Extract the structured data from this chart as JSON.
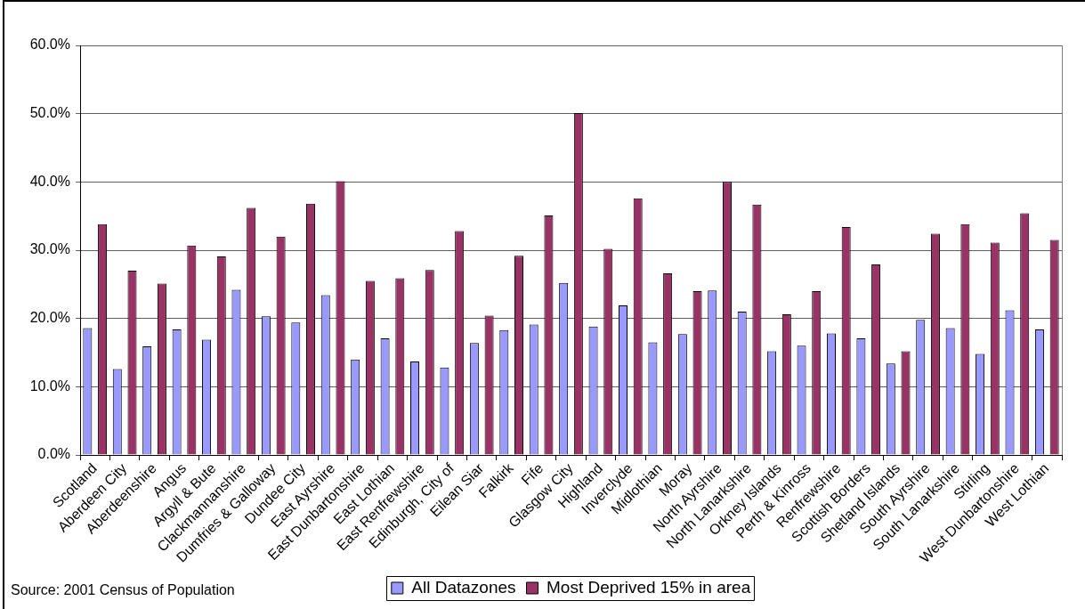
{
  "chart_data": {
    "type": "bar",
    "categories": [
      "Scotland",
      "Aberdeen City",
      "Aberdeenshire",
      "Angus",
      "Argyll & Bute",
      "Clackmannanshire",
      "Dumfries & Galloway",
      "Dundee City",
      "East Ayrshire",
      "East Dunbartonshire",
      "East Lothian",
      "East Renfrewshire",
      "Edinburgh, City of",
      "Eilean Siar",
      "Falkirk",
      "Fife",
      "Glasgow City",
      "Highland",
      "Inverclyde",
      "Midlothian",
      "Moray",
      "North Ayrshire",
      "North Lanarkshire",
      "Orkney Islands",
      "Perth & Kinross",
      "Renfrewshire",
      "Scottish Borders",
      "Shetland Islands",
      "South Ayrshire",
      "South Lanarkshire",
      "Stirling",
      "West Dunbartonshire",
      "West Lothian"
    ],
    "series": [
      {
        "name": "All Datazones",
        "color": "#9999ff",
        "values": [
          18.6,
          12.6,
          15.9,
          18.4,
          16.9,
          24.2,
          20.3,
          19.4,
          23.4,
          14.0,
          17.1,
          13.7,
          12.8,
          16.4,
          18.3,
          19.1,
          25.2,
          18.8,
          21.9,
          16.5,
          17.7,
          24.1,
          21.0,
          15.2,
          16.0,
          17.8,
          17.1,
          13.4,
          19.8,
          18.6,
          14.8,
          21.2,
          18.4
        ]
      },
      {
        "name": "Most Deprived 15% in area",
        "color": "#993366",
        "values": [
          33.8,
          27.0,
          25.1,
          30.7,
          29.1,
          36.2,
          32.0,
          36.8,
          40.1,
          25.5,
          25.9,
          27.1,
          32.8,
          20.4,
          29.2,
          35.1,
          50.1,
          30.2,
          37.6,
          26.6,
          24.0,
          40.0,
          36.7,
          20.6,
          24.0,
          33.4,
          27.9,
          15.2,
          32.4,
          33.8,
          31.1,
          35.4,
          31.5
        ]
      }
    ],
    "ylim": [
      0,
      60
    ],
    "yticks": [
      {
        "value": 0,
        "label": "0.0%"
      },
      {
        "value": 10,
        "label": "10.0%"
      },
      {
        "value": 20,
        "label": "20.0%"
      },
      {
        "value": 30,
        "label": "30.0%"
      },
      {
        "value": 40,
        "label": "40.0%"
      },
      {
        "value": 50,
        "label": "50.0%"
      },
      {
        "value": 60,
        "label": "60.0%"
      }
    ],
    "grid": "y",
    "legend": "bottom",
    "annotations": [
      "Source: 2001 Census of Population"
    ]
  }
}
